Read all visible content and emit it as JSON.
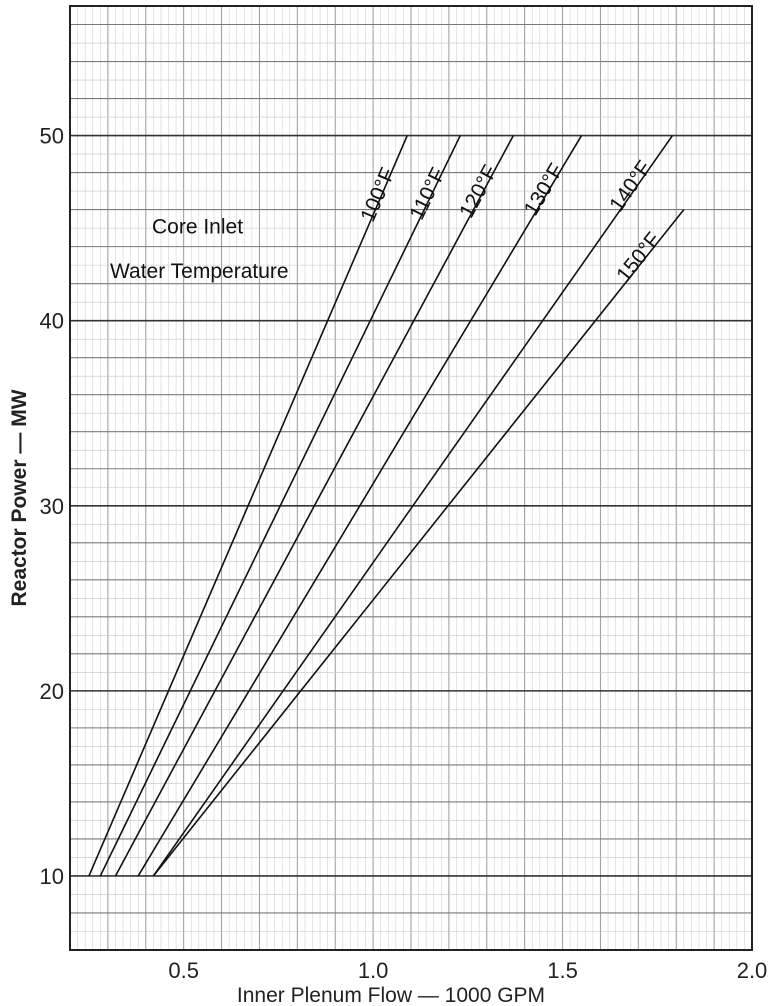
{
  "chart_data": {
    "type": "line",
    "title": "",
    "xlabel": "Inner Plenum Flow — 1000 GPM",
    "ylabel": "Reactor Power — MW",
    "xlim": [
      0.2,
      2.0
    ],
    "ylim": [
      6,
      57
    ],
    "x_ticks": [
      0.5,
      1.0,
      1.5,
      2.0
    ],
    "x_tick_labels": [
      "0.5",
      "1.0",
      "1.5",
      "2.0"
    ],
    "y_ticks": [
      10,
      20,
      30,
      40,
      50
    ],
    "y_tick_labels": [
      "10",
      "20",
      "30",
      "40",
      "50"
    ],
    "grid": true,
    "annotation": [
      "Core Inlet",
      "Water Temperature"
    ],
    "series": [
      {
        "name": "100°F",
        "x": [
          0.25,
          1.09
        ],
        "y": [
          10,
          50
        ]
      },
      {
        "name": "110°F",
        "x": [
          0.28,
          1.23
        ],
        "y": [
          10,
          50
        ]
      },
      {
        "name": "120°F",
        "x": [
          0.32,
          1.37
        ],
        "y": [
          10,
          50
        ]
      },
      {
        "name": "130°F",
        "x": [
          0.38,
          1.55
        ],
        "y": [
          10,
          50
        ]
      },
      {
        "name": "140°F",
        "x": [
          0.42,
          1.79
        ],
        "y": [
          10,
          50
        ]
      },
      {
        "name": "150°F",
        "x": [
          0.42,
          1.82
        ],
        "y": [
          10,
          46
        ]
      }
    ]
  }
}
